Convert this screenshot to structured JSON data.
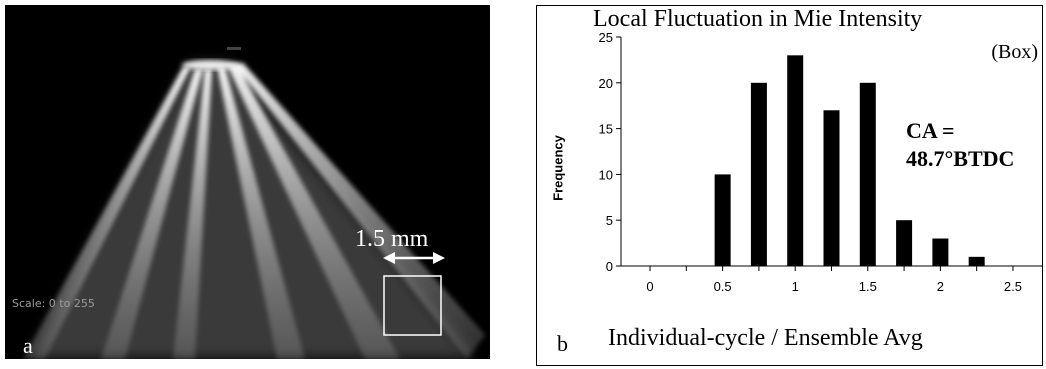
{
  "image_panel": {
    "scale_text": "Scale: 0 to 255",
    "panel_label": "a",
    "scale_bar_label": "1.5 mm"
  },
  "chart_panel": {
    "panel_label": "b",
    "box_label": "(Box)",
    "ca_line1": "CA =",
    "ca_line2": "48.7°BTDC"
  },
  "chart_data": {
    "type": "bar",
    "title": "Local Fluctuation in Mie Intensity",
    "xlabel": "Individual-cycle / Ensemble Avg",
    "ylabel": "Frequency",
    "x_ticks": [
      "0",
      "0.5",
      "1",
      "1.5",
      "2",
      "2.5"
    ],
    "y_ticks": [
      "0",
      "5",
      "10",
      "15",
      "20",
      "25"
    ],
    "xlim": [
      -0.2,
      2.7
    ],
    "ylim": [
      0,
      25
    ],
    "x": [
      0.5,
      0.75,
      1.0,
      1.25,
      1.5,
      1.75,
      2.0,
      2.25
    ],
    "values": [
      10,
      20,
      23,
      17,
      20,
      5,
      3,
      1
    ],
    "colors": {
      "bar": "#000000",
      "axis": "#000000"
    }
  }
}
